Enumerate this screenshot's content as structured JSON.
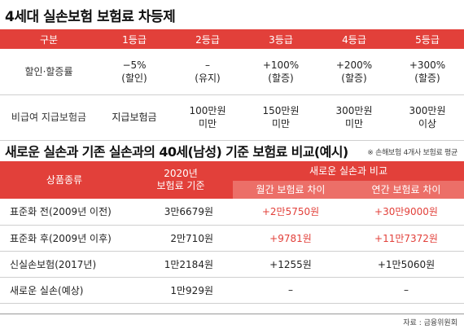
{
  "title1": "4세대 실손보험 보험료 차등제",
  "table1": {
    "headers": [
      "구분",
      "1등급",
      "2등급",
      "3등급",
      "4등급",
      "5등급"
    ],
    "row1": {
      "label": "할인·할증률",
      "cells": [
        {
          "line1": "−5%",
          "line2": "(할인)"
        },
        {
          "line1": "–",
          "line2": "(유지)"
        },
        {
          "line1": "+100%",
          "line2": "(할증)"
        },
        {
          "line1": "+200%",
          "line2": "(할증)"
        },
        {
          "line1": "+300%",
          "line2": "(할증)"
        }
      ]
    },
    "row2": {
      "label": "비급여 지급보험금",
      "cells": [
        {
          "line1": "지급보험금",
          "line2": ""
        },
        {
          "line1": "100만원",
          "line2": "미만"
        },
        {
          "line1": "150만원",
          "line2": "미만"
        },
        {
          "line1": "300만원",
          "line2": "미만"
        },
        {
          "line1": "300만원",
          "line2": "이상"
        }
      ]
    }
  },
  "title2": "새로운 실손과 기존 실손과의 40세(남성) 기준 보험료 비교(예시)",
  "note": "※ 손해보험 4개사 보험료 평균",
  "table2": {
    "header_product": "상품종류",
    "header_2020_line1": "2020년",
    "header_2020_line2": "보험료 기준",
    "header_compare": "새로운 실손과 비교",
    "header_monthly": "월간 보험료 차이",
    "header_yearly": "연간 보험료 차이",
    "rows": [
      {
        "product": "표준화 전(2009년 이전)",
        "base": "3만6679원",
        "monthly": "+2만5750원",
        "yearly": "+30만9000원"
      },
      {
        "product": "표준화 후(2009년 이후)",
        "base": "2만710원",
        "monthly": "+9781원",
        "yearly": "+11만7372원"
      },
      {
        "product": "신실손보험(2017년)",
        "base": "1만2184원",
        "monthly": "+1255원",
        "yearly": "+1만5060원"
      },
      {
        "product": "새로운 실손(예상)",
        "base": "1만929원",
        "monthly": "–",
        "yearly": "–"
      }
    ]
  },
  "source": "자료 : 금융위원회",
  "colors": {
    "accent": "#e2403a",
    "accent_light": "#ec6f68"
  }
}
